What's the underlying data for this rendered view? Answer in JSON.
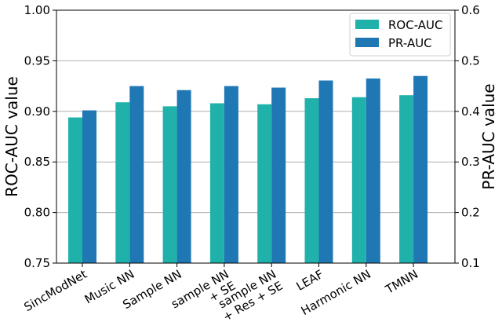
{
  "chart_data": {
    "type": "bar",
    "categories": [
      "SincModNet",
      "Music NN",
      "Sample NN",
      "sample NN\n+ SE",
      "sample NN\n+ Res + SE",
      "LEAF",
      "Harmonic NN",
      "TMNN"
    ],
    "series": [
      {
        "name": "ROC-AUC",
        "axis": "left",
        "color": "#20b2aa",
        "values": [
          0.894,
          0.909,
          0.905,
          0.908,
          0.907,
          0.913,
          0.914,
          0.916
        ]
      },
      {
        "name": "PR-AUC",
        "axis": "right",
        "color": "#1f77b4",
        "values": [
          0.402,
          0.45,
          0.442,
          0.45,
          0.447,
          0.461,
          0.465,
          0.47
        ]
      }
    ],
    "ylabel": "ROC-AUC value",
    "ylabel_right": "PR-AUC value",
    "ylim": [
      0.75,
      1.0
    ],
    "ylim_right": [
      0.1,
      0.6
    ],
    "yticks": [
      "0.75",
      "0.80",
      "0.85",
      "0.90",
      "0.95",
      "1.00"
    ],
    "yticks_right": [
      "0.1",
      "0.2",
      "0.3",
      "0.4",
      "0.5",
      "0.6"
    ],
    "grid": "horizontal",
    "legend_position": "top-right"
  }
}
